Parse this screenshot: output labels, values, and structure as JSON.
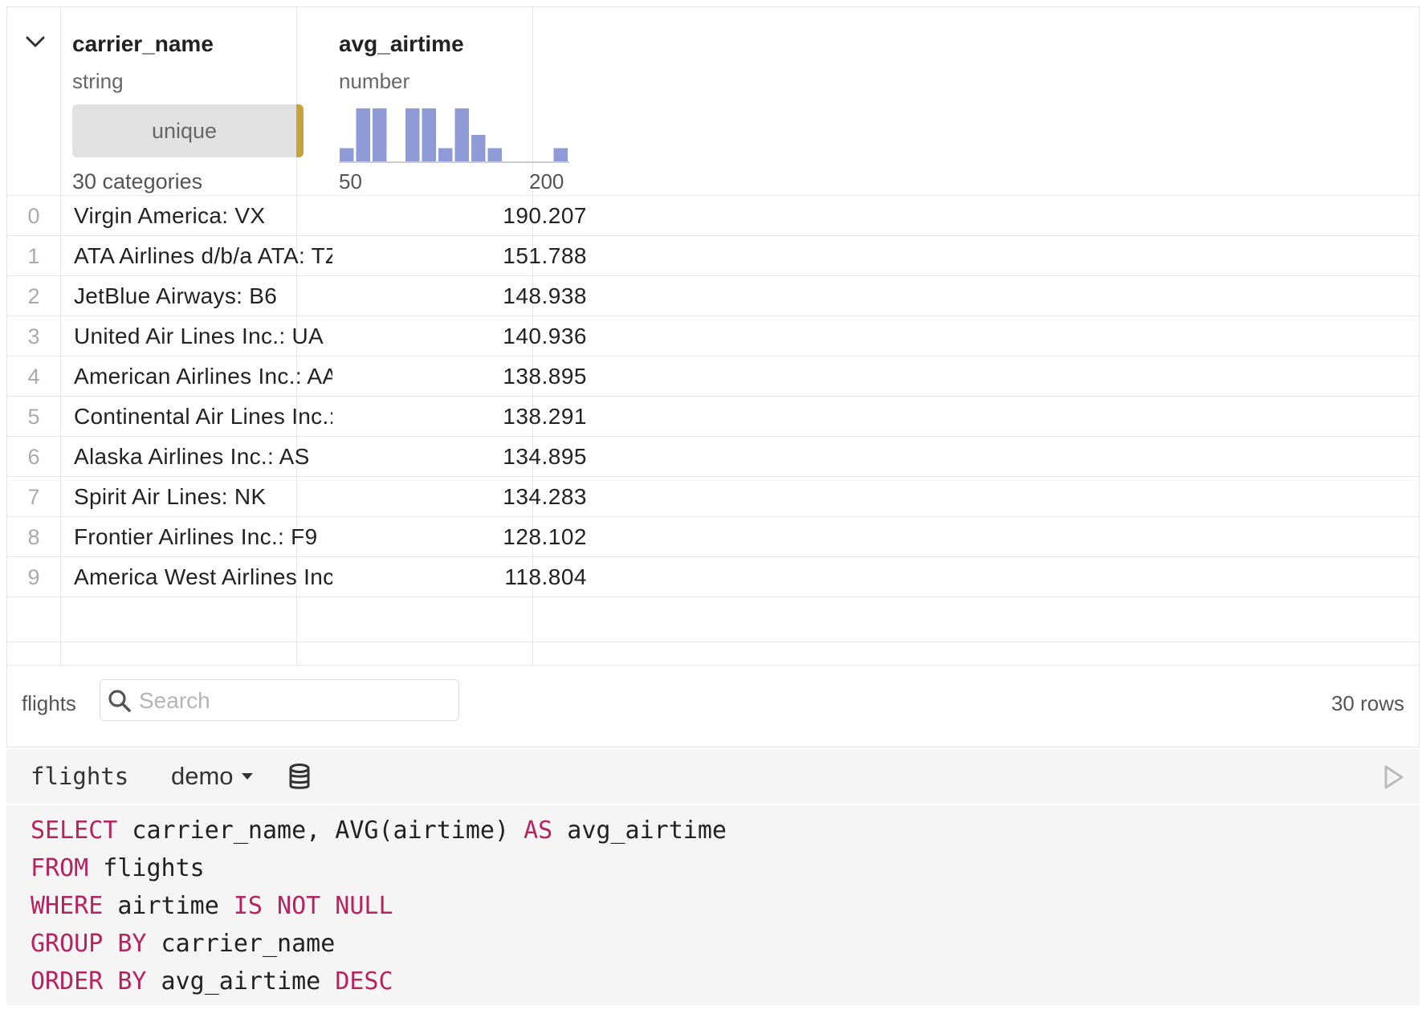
{
  "columns": [
    {
      "name": "carrier_name",
      "type": "string",
      "summary_label": "unique",
      "summary_text": "30 categories"
    },
    {
      "name": "avg_airtime",
      "type": "number",
      "hist_min_label": "50",
      "hist_max_label": "200"
    }
  ],
  "histogram": {
    "bin_heights": [
      0.25,
      1.0,
      1.0,
      0,
      1.0,
      1.0,
      0.25,
      1.0,
      0.5,
      0.25,
      0,
      0,
      0,
      0.25
    ],
    "bin_fill_pattern": "relative",
    "color": "#8e9bd6"
  },
  "unique_bar_accent": "#c9a03a",
  "rows": [
    {
      "index": "0",
      "carrier_name": "Virgin America: VX",
      "avg_airtime": "190.207"
    },
    {
      "index": "1",
      "carrier_name": "ATA Airlines d/b/a ATA: TZ",
      "avg_airtime": "151.788"
    },
    {
      "index": "2",
      "carrier_name": "JetBlue Airways: B6",
      "avg_airtime": "148.938"
    },
    {
      "index": "3",
      "carrier_name": "United Air Lines Inc.: UA",
      "avg_airtime": "140.936"
    },
    {
      "index": "4",
      "carrier_name": "American Airlines Inc.: AA",
      "avg_airtime": "138.895"
    },
    {
      "index": "5",
      "carrier_name": "Continental Air Lines Inc.: CO",
      "avg_airtime": "138.291"
    },
    {
      "index": "6",
      "carrier_name": "Alaska Airlines Inc.: AS",
      "avg_airtime": "134.895"
    },
    {
      "index": "7",
      "carrier_name": "Spirit Air Lines: NK",
      "avg_airtime": "134.283"
    },
    {
      "index": "8",
      "carrier_name": "Frontier Airlines Inc.: F9",
      "avg_airtime": "128.102"
    },
    {
      "index": "9",
      "carrier_name": "America West Airlines Inc.: HP",
      "avg_airtime": "118.804"
    }
  ],
  "footer": {
    "table_name": "flights",
    "search_placeholder": "Search",
    "row_count": "30 rows"
  },
  "sql_cell": {
    "name": "flights",
    "database": "demo",
    "code": [
      [
        {
          "k": "SELECT"
        },
        {
          "t": " carrier_name, AVG(airtime) "
        },
        {
          "k": "AS"
        },
        {
          "t": " avg_airtime"
        }
      ],
      [
        {
          "k": "FROM"
        },
        {
          "t": " flights"
        }
      ],
      [
        {
          "k": "WHERE"
        },
        {
          "t": " airtime "
        },
        {
          "k": "IS NOT NULL"
        }
      ],
      [
        {
          "k": "GROUP BY"
        },
        {
          "t": " carrier_name"
        }
      ],
      [
        {
          "k": "ORDER BY"
        },
        {
          "t": " avg_airtime "
        },
        {
          "k": "DESC"
        }
      ]
    ]
  }
}
